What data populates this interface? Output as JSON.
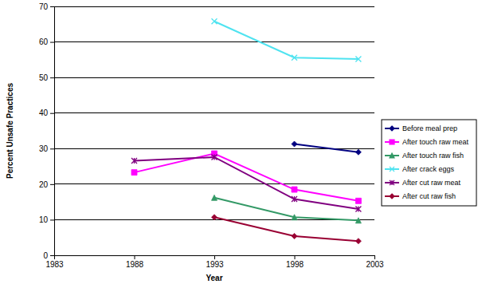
{
  "chart_data": {
    "type": "line",
    "x_label": "Year",
    "y_label": "Percent Unsafe Practices",
    "x": [
      1988,
      1993,
      1998,
      2002
    ],
    "xlim": [
      1983,
      2003
    ],
    "xticks": [
      1983,
      1988,
      1993,
      1998,
      2003
    ],
    "ylim": [
      0,
      70
    ],
    "yticks": [
      0,
      10,
      20,
      30,
      40,
      50,
      60,
      70
    ],
    "grid": true,
    "legend": "right",
    "series": [
      {
        "name": "Before meal prep",
        "color": "#000080",
        "marker": "diamond",
        "values": [
          null,
          null,
          31.3,
          29
        ]
      },
      {
        "name": "After touch raw meat",
        "color": "#ff00ff",
        "marker": "square",
        "values": [
          23.3,
          28.6,
          18.5,
          15.3
        ]
      },
      {
        "name": "After touch raw fish",
        "color": "#339966",
        "marker": "triangle",
        "values": [
          null,
          16.2,
          10.7,
          9.8
        ]
      },
      {
        "name": "After crack eggs",
        "color": "#4fe3f0",
        "marker": "x",
        "values": [
          null,
          65.8,
          55.6,
          55.2
        ]
      },
      {
        "name": "After cut raw meat",
        "color": "#800080",
        "marker": "star",
        "values": [
          26.6,
          27.6,
          15.8,
          13
        ]
      },
      {
        "name": "After cut raw fish",
        "color": "#990033",
        "marker": "diamond",
        "values": [
          null,
          10.7,
          5.4,
          4
        ]
      }
    ]
  }
}
